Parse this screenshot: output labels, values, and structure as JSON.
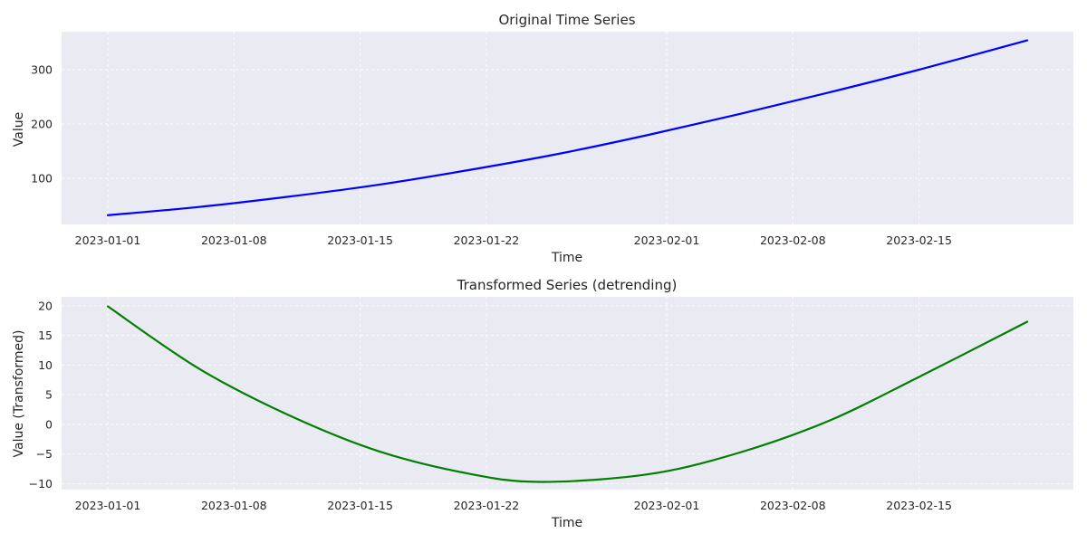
{
  "chart_data": [
    {
      "type": "line",
      "title": "Original Time Series",
      "xlabel": "Time",
      "ylabel": "Value",
      "x_range": [
        "2023-01-01",
        "2023-02-21"
      ],
      "xticks": [
        "2023-01-01",
        "2023-01-08",
        "2023-01-15",
        "2023-01-22",
        "2023-02-01",
        "2023-02-08",
        "2023-02-15"
      ],
      "yticks": [
        100,
        200,
        300
      ],
      "ytick_labels": [
        "100",
        "200",
        "300"
      ],
      "ylim": [
        15,
        370
      ],
      "grid": true,
      "color": "#0000ff",
      "series": [
        {
          "x": [
            "2023-01-01",
            "2023-01-06",
            "2023-01-11",
            "2023-01-16",
            "2023-01-21",
            "2023-01-26",
            "2023-01-31",
            "2023-02-05",
            "2023-02-10",
            "2023-02-15",
            "2023-02-21"
          ],
          "values": [
            32,
            47,
            66,
            88,
            115,
            145,
            180,
            218,
            258,
            300,
            354
          ]
        }
      ]
    },
    {
      "type": "line",
      "title": "Transformed Series (detrending)",
      "xlabel": "Time",
      "ylabel": "Value (Transformed)",
      "x_range": [
        "2023-01-01",
        "2023-02-21"
      ],
      "xticks": [
        "2023-01-01",
        "2023-01-08",
        "2023-01-15",
        "2023-01-22",
        "2023-02-01",
        "2023-02-08",
        "2023-02-15"
      ],
      "yticks": [
        20,
        15,
        10,
        5,
        0,
        -5,
        -10
      ],
      "ytick_labels": [
        "20",
        "15",
        "10",
        "5",
        "0",
        "−5",
        "−10"
      ],
      "ylim": [
        -11,
        21.5
      ],
      "grid": true,
      "color": "#008000",
      "series": [
        {
          "x": [
            "2023-01-01",
            "2023-01-06",
            "2023-01-11",
            "2023-01-16",
            "2023-01-21",
            "2023-01-25",
            "2023-01-31",
            "2023-02-05",
            "2023-02-10",
            "2023-02-15",
            "2023-02-21"
          ],
          "values": [
            19.9,
            9.5,
            1.6,
            -4.5,
            -8.3,
            -9.7,
            -8.4,
            -4.8,
            0.6,
            8.0,
            17.3
          ]
        }
      ]
    }
  ]
}
